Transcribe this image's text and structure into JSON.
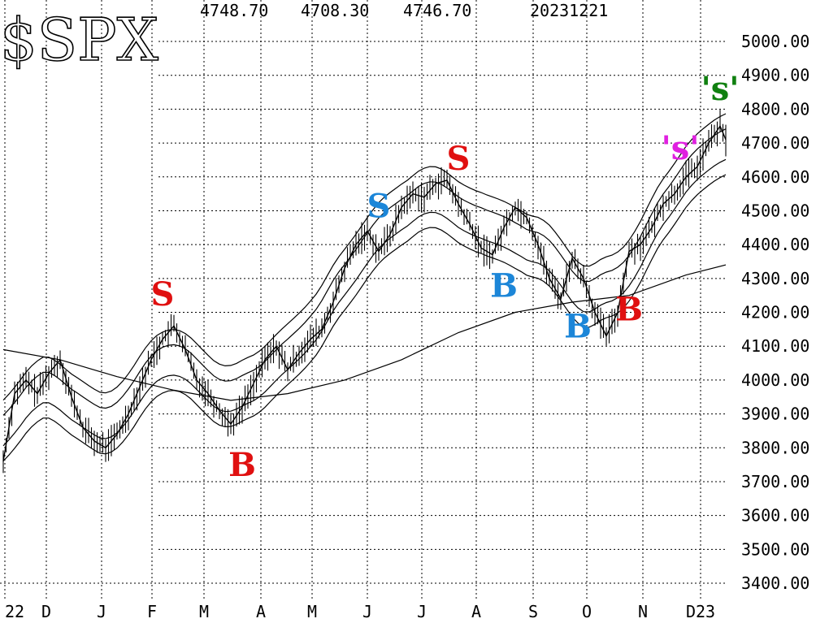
{
  "header": {
    "symbol": "$SPX",
    "values": [
      "4748.70",
      "4708.30",
      "4746.70"
    ],
    "date": "20231221"
  },
  "colors": {
    "red": "#e01010",
    "blue": "#1c86d8",
    "magenta": "#e020e0",
    "green": "#108010",
    "line": "#000000"
  },
  "chart_data": {
    "type": "line",
    "title": "$SPX",
    "xlabel": "",
    "ylabel": "",
    "ylim": [
      3400,
      5000
    ],
    "x_ticks": [
      "22",
      "D",
      "J",
      "F",
      "M",
      "A",
      "M",
      "J",
      "J",
      "A",
      "S",
      "O",
      "N",
      "D23"
    ],
    "y_ticks": [
      "5000.00",
      "4900.00",
      "4800.00",
      "4700.00",
      "4600.00",
      "4500.00",
      "4400.00",
      "4300.00",
      "4200.00",
      "4100.00",
      "4000.00",
      "3900.00",
      "3800.00",
      "3700.00",
      "3600.00",
      "3500.00",
      "3400.00"
    ],
    "grid": true,
    "series": [
      {
        "values": [
          [
            0,
            3760
          ],
          [
            2,
            3960
          ],
          [
            4,
            4000
          ],
          [
            6,
            3960
          ],
          [
            8,
            4020
          ],
          [
            10,
            4060
          ],
          [
            12,
            3950
          ],
          [
            14,
            3860
          ],
          [
            16,
            3820
          ],
          [
            18,
            3800
          ],
          [
            20,
            3840
          ],
          [
            22,
            3900
          ],
          [
            24,
            3980
          ],
          [
            26,
            4060
          ],
          [
            28,
            4120
          ],
          [
            30,
            4160
          ],
          [
            32,
            4090
          ],
          [
            34,
            4000
          ],
          [
            36,
            3960
          ],
          [
            38,
            3910
          ],
          [
            40,
            3870
          ],
          [
            42,
            3920
          ],
          [
            44,
            3990
          ],
          [
            46,
            4060
          ],
          [
            48,
            4100
          ],
          [
            50,
            4030
          ],
          [
            52,
            4080
          ],
          [
            54,
            4120
          ],
          [
            56,
            4150
          ],
          [
            58,
            4230
          ],
          [
            60,
            4330
          ],
          [
            62,
            4400
          ],
          [
            64,
            4440
          ],
          [
            66,
            4380
          ],
          [
            68,
            4430
          ],
          [
            70,
            4510
          ],
          [
            72,
            4550
          ],
          [
            74,
            4540
          ],
          [
            76,
            4580
          ],
          [
            78,
            4590
          ],
          [
            80,
            4520
          ],
          [
            82,
            4460
          ],
          [
            84,
            4390
          ],
          [
            86,
            4370
          ],
          [
            88,
            4450
          ],
          [
            90,
            4510
          ],
          [
            92,
            4480
          ],
          [
            94,
            4400
          ],
          [
            96,
            4300
          ],
          [
            98,
            4240
          ],
          [
            100,
            4360
          ],
          [
            102,
            4300
          ],
          [
            104,
            4200
          ],
          [
            106,
            4130
          ],
          [
            108,
            4200
          ],
          [
            110,
            4380
          ],
          [
            112,
            4400
          ],
          [
            114,
            4450
          ],
          [
            116,
            4520
          ],
          [
            118,
            4550
          ],
          [
            120,
            4600
          ],
          [
            122,
            4630
          ],
          [
            124,
            4700
          ],
          [
            126,
            4750
          ],
          [
            127,
            4710
          ]
        ]
      },
      {
        "values": [
          [
            0,
            4090
          ],
          [
            10,
            4060
          ],
          [
            20,
            4010
          ],
          [
            30,
            3970
          ],
          [
            40,
            3940
          ],
          [
            50,
            3960
          ],
          [
            60,
            4000
          ],
          [
            70,
            4060
          ],
          [
            80,
            4140
          ],
          [
            90,
            4200
          ],
          [
            100,
            4230
          ],
          [
            110,
            4250
          ],
          [
            120,
            4310
          ],
          [
            127,
            4340
          ]
        ]
      }
    ],
    "signals": [
      {
        "label": "S",
        "color": "red",
        "date_index": 28
      },
      {
        "label": "B",
        "color": "red",
        "date_index": 42
      },
      {
        "label": "S",
        "color": "blue",
        "date_index": 66
      },
      {
        "label": "S",
        "color": "red",
        "date_index": 80
      },
      {
        "label": "B",
        "color": "blue",
        "date_index": 88
      },
      {
        "label": "B",
        "color": "blue",
        "date_index": 101
      },
      {
        "label": "B",
        "color": "red",
        "date_index": 110
      },
      {
        "label": "'s'",
        "color": "magenta",
        "date_index": 119
      },
      {
        "label": "'s'",
        "color": "green",
        "date_index": 126
      }
    ]
  }
}
